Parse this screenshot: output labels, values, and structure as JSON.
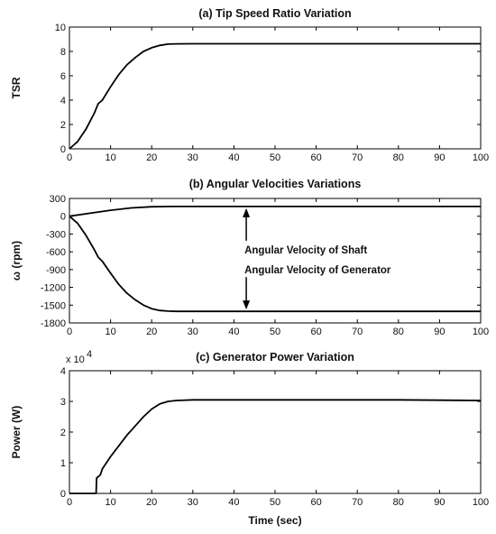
{
  "chart_data": [
    {
      "type": "line",
      "title": "(a) Tip Speed Ratio Variation",
      "xlabel": "",
      "ylabel": "TSR",
      "xlim": [
        0,
        100
      ],
      "ylim": [
        0,
        10
      ],
      "xticks": [
        "0",
        "10",
        "20",
        "30",
        "40",
        "50",
        "60",
        "70",
        "80",
        "90",
        "100"
      ],
      "yticks": [
        "0",
        "2",
        "4",
        "6",
        "8",
        "10"
      ],
      "grid": false,
      "series": [
        {
          "x": [
            0,
            2,
            4,
            6,
            7,
            8,
            10,
            12,
            14,
            16,
            18,
            20,
            22,
            24,
            26,
            30,
            40,
            60,
            80,
            100
          ],
          "y": [
            0,
            0.6,
            1.6,
            2.9,
            3.7,
            4.0,
            5.1,
            6.1,
            6.9,
            7.5,
            8.0,
            8.3,
            8.5,
            8.6,
            8.62,
            8.63,
            8.63,
            8.63,
            8.63,
            8.63
          ]
        }
      ]
    },
    {
      "type": "line",
      "title": "(b) Angular Velocities Variations",
      "xlabel": "",
      "ylabel": "ω (rpm)",
      "xlim": [
        0,
        100
      ],
      "ylim": [
        -1800,
        300
      ],
      "xticks": [
        "0",
        "10",
        "20",
        "30",
        "40",
        "50",
        "60",
        "70",
        "80",
        "90",
        "100"
      ],
      "yticks": [
        "300",
        "0",
        "-300",
        "-600",
        "-900",
        "-1200",
        "-1500",
        "-1800"
      ],
      "grid": false,
      "annotations": [
        "Angular Velocity of Shaft",
        "Angular Velocity of Generator"
      ],
      "series": [
        {
          "x": [
            0,
            5,
            10,
            15,
            20,
            25,
            30,
            40,
            60,
            80,
            100
          ],
          "y": [
            0,
            50,
            100,
            140,
            160,
            165,
            165,
            165,
            165,
            165,
            165
          ]
        },
        {
          "x": [
            0,
            2,
            4,
            6,
            7,
            8,
            10,
            12,
            14,
            16,
            18,
            20,
            22,
            24,
            26,
            30,
            40,
            60,
            80,
            100
          ],
          "y": [
            0,
            -120,
            -320,
            -560,
            -690,
            -760,
            -960,
            -1150,
            -1300,
            -1410,
            -1500,
            -1560,
            -1590,
            -1600,
            -1605,
            -1605,
            -1605,
            -1605,
            -1605,
            -1605
          ]
        }
      ]
    },
    {
      "type": "line",
      "title": "(c) Generator Power Variation",
      "xlabel": "Time (sec)",
      "ylabel": "Power (W)",
      "exponent": "x 10",
      "exponent_power": "4",
      "xlim": [
        0,
        100
      ],
      "ylim": [
        0,
        4
      ],
      "xticks": [
        "0",
        "10",
        "20",
        "30",
        "40",
        "50",
        "60",
        "70",
        "80",
        "90",
        "100"
      ],
      "yticks": [
        "0",
        "1",
        "2",
        "3",
        "4"
      ],
      "grid": false,
      "series": [
        {
          "x": [
            0,
            6.5,
            6.6,
            7.5,
            8,
            10,
            12,
            14,
            16,
            18,
            20,
            22,
            24,
            26,
            30,
            40,
            60,
            80,
            100
          ],
          "y": [
            0,
            0,
            0.5,
            0.6,
            0.8,
            1.2,
            1.55,
            1.9,
            2.2,
            2.5,
            2.75,
            2.92,
            3.0,
            3.03,
            3.05,
            3.05,
            3.05,
            3.05,
            3.03
          ]
        }
      ]
    }
  ]
}
